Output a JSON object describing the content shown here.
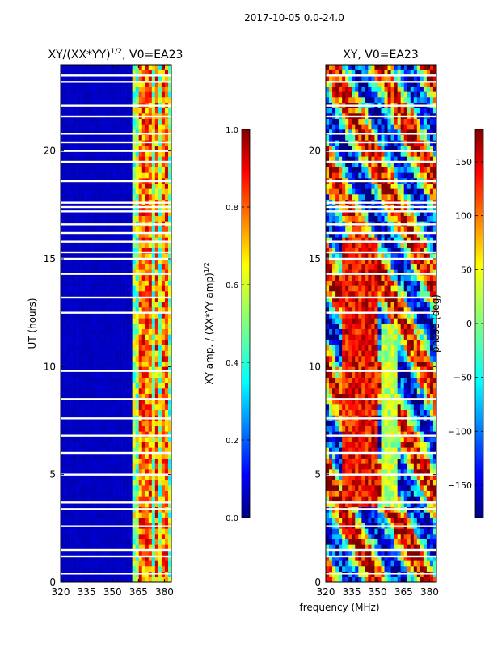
{
  "figure_title": "2017-10-05 0.0-24.0",
  "shared_xlabel": "frequency (MHz)",
  "chart_data": [
    {
      "type": "heatmap",
      "title": "XY/(XX*YY)",
      "title_superscript": "1/2",
      "title_suffix": ", V0=EA23",
      "xlabel": "",
      "ylabel": "UT (hours)",
      "xlim": [
        320,
        384
      ],
      "ylim": [
        0,
        24
      ],
      "xticks": [
        "320",
        "335",
        "350",
        "365",
        "380"
      ],
      "xtick_values": [
        320,
        335,
        350,
        365,
        380
      ],
      "yticks": [
        "0",
        "5",
        "10",
        "15",
        "20"
      ],
      "ytick_values": [
        0,
        5,
        10,
        15,
        20
      ],
      "colormap": "jet",
      "colorbar": {
        "label": "XY amp. / (XX*YY amp)",
        "label_superscript": "1/2",
        "range": [
          0.0,
          1.0
        ],
        "ticks": [
          "0.0",
          "0.2",
          "0.4",
          "0.6",
          "0.8",
          "1.0"
        ],
        "tick_values": [
          0.0,
          0.2,
          0.4,
          0.6,
          0.8,
          1.0
        ]
      },
      "background_value": 0.05,
      "active_band_mhz": [
        361,
        384
      ],
      "bright_channels_mhz": [
        367,
        371,
        375,
        380
      ],
      "flagged_hours": [
        0.4,
        1.2,
        1.5,
        2.6,
        3.4,
        3.7,
        5.0,
        6.0,
        6.8,
        7.6,
        8.5,
        9.8,
        12.5,
        13.2,
        14.3,
        15.0,
        15.3,
        15.8,
        16.2,
        16.6,
        17.2,
        17.4,
        17.6,
        18.6,
        19.5,
        20.0,
        20.4,
        20.8,
        21.6,
        22.1,
        23.2,
        23.5
      ]
    },
    {
      "type": "heatmap",
      "title": "XY, V0=EA23",
      "xlabel": "",
      "ylabel": "",
      "xlim": [
        320,
        384
      ],
      "ylim": [
        0,
        24
      ],
      "xticks": [
        "320",
        "335",
        "350",
        "365",
        "380"
      ],
      "xtick_values": [
        320,
        335,
        350,
        365,
        380
      ],
      "yticks": [
        "0",
        "5",
        "10",
        "15",
        "20"
      ],
      "ytick_values": [
        0,
        5,
        10,
        15,
        20
      ],
      "colormap": "jet",
      "colorbar": {
        "label": "phase (deg)",
        "range": [
          -180,
          180
        ],
        "ticks": [
          "−150",
          "−100",
          "−50",
          "0",
          "50",
          "100",
          "150"
        ],
        "tick_values": [
          -150,
          -100,
          -50,
          0,
          50,
          100,
          150
        ]
      },
      "flagged_hours": [
        0.4,
        1.2,
        1.5,
        2.6,
        3.4,
        3.7,
        5.0,
        6.0,
        6.8,
        7.6,
        8.5,
        9.8,
        12.5,
        13.2,
        14.3,
        15.0,
        15.3,
        15.8,
        16.2,
        16.6,
        17.2,
        17.4,
        17.6,
        18.6,
        19.5,
        20.0,
        20.4,
        20.8,
        21.6,
        22.1,
        23.2,
        23.5
      ]
    }
  ]
}
